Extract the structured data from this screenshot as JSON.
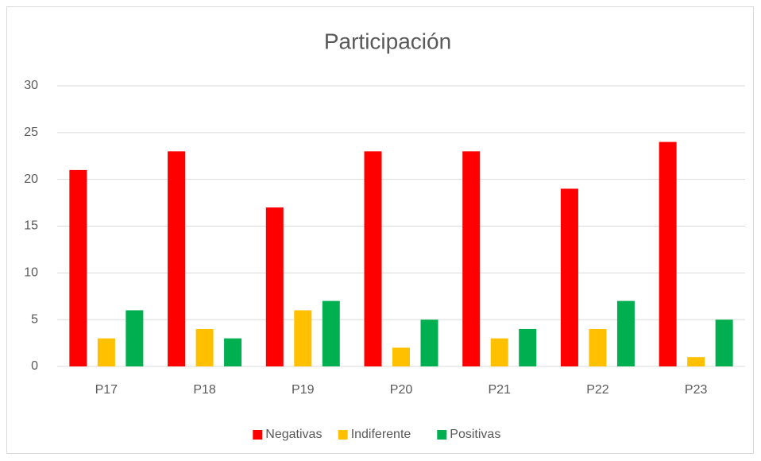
{
  "chart_data": {
    "type": "bar",
    "title": "Participación",
    "categories": [
      "P17",
      "P18",
      "P19",
      "P20",
      "P21",
      "P22",
      "P23"
    ],
    "series": [
      {
        "name": "Negativas",
        "color": "#ff0000",
        "values": [
          21,
          23,
          17,
          23,
          23,
          19,
          24
        ]
      },
      {
        "name": "Indiferente",
        "color": "#ffc000",
        "values": [
          3,
          4,
          6,
          2,
          3,
          4,
          1
        ]
      },
      {
        "name": "Positivas",
        "color": "#00b050",
        "values": [
          6,
          3,
          7,
          5,
          4,
          7,
          5
        ]
      }
    ],
    "ylim": [
      0,
      30
    ],
    "yticks": [
      0,
      5,
      10,
      15,
      20,
      25,
      30
    ],
    "grid": true,
    "legend": "bottom"
  }
}
